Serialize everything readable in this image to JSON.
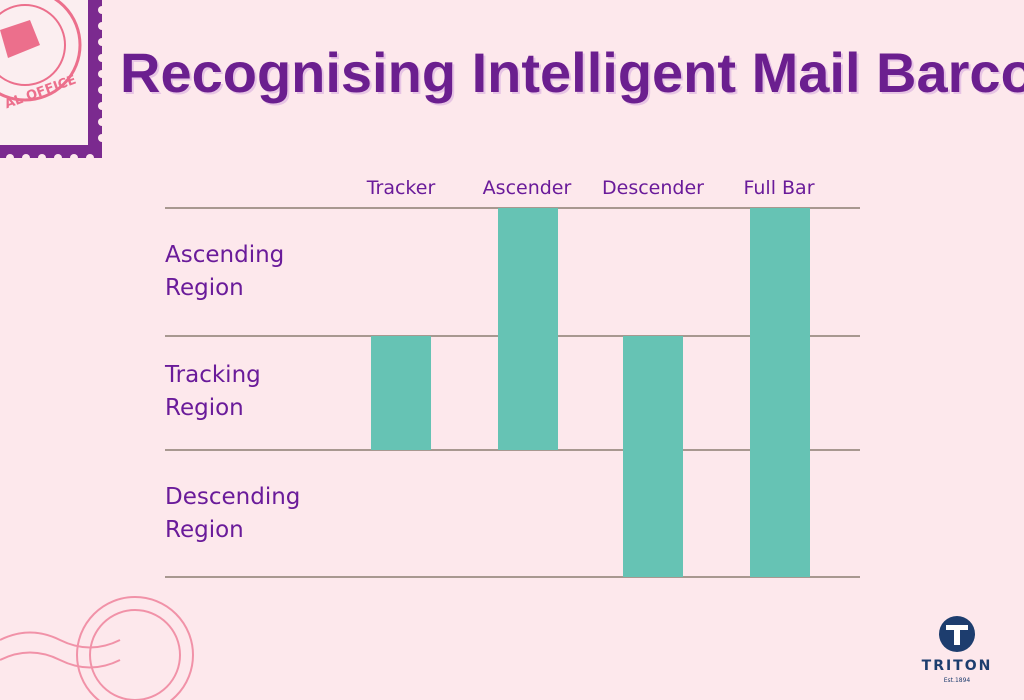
{
  "header": {
    "title": "Recognising Intelligent Mail Barcode"
  },
  "columns": [
    "Tracker",
    "Ascender",
    "Descender",
    "Full Bar"
  ],
  "regions": [
    [
      "Ascending",
      "Region"
    ],
    [
      "Tracking",
      "Region"
    ],
    [
      "Descending",
      "Region"
    ]
  ],
  "stamp": {
    "text": "AL OFFICE"
  },
  "logo": {
    "name": "TRITON",
    "tagline": "Est.1894"
  }
}
